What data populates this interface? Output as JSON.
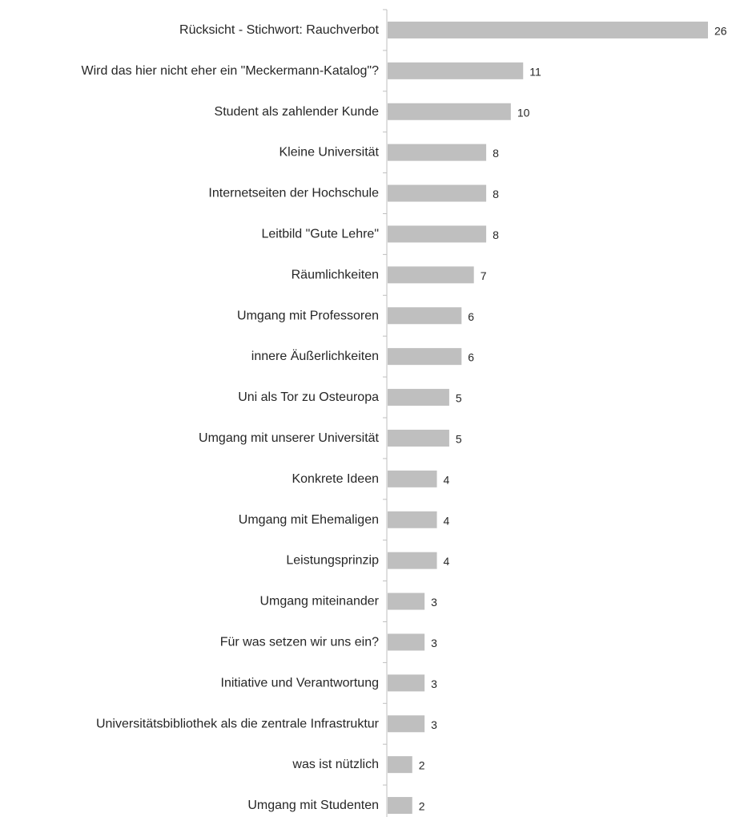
{
  "chart_data": {
    "type": "bar",
    "orientation": "horizontal",
    "categories": [
      "Rücksicht - Stichwort: Rauchverbot",
      "Wird das hier nicht eher ein \"Meckermann-Katalog\"?",
      "Student als zahlender Kunde",
      "Kleine Universität",
      "Internetseiten der Hochschule",
      "Leitbild \"Gute Lehre\"",
      "Räumlichkeiten",
      "Umgang mit Professoren",
      "innere Äußerlichkeiten",
      "Uni als Tor zu Osteuropa",
      "Umgang mit unserer Universität",
      "Konkrete Ideen",
      "Umgang mit Ehemaligen",
      "Leistungsprinzip",
      "Umgang miteinander",
      "Für was setzen wir uns ein?",
      "Initiative und Verantwortung",
      "Universitätsbibliothek als die zentrale Infrastruktur",
      "was ist nützlich",
      "Umgang mit Studenten"
    ],
    "values": [
      26,
      11,
      10,
      8,
      8,
      8,
      7,
      6,
      6,
      5,
      5,
      4,
      4,
      4,
      3,
      3,
      3,
      3,
      2,
      2
    ],
    "xlim": [
      0,
      26
    ],
    "title": "",
    "xlabel": "",
    "ylabel": "",
    "grid": false,
    "legend": "none",
    "data_labels": true,
    "colors": {
      "bar": "#bfbfbf",
      "axis": "#bfbfbf",
      "text": "#262626"
    }
  }
}
